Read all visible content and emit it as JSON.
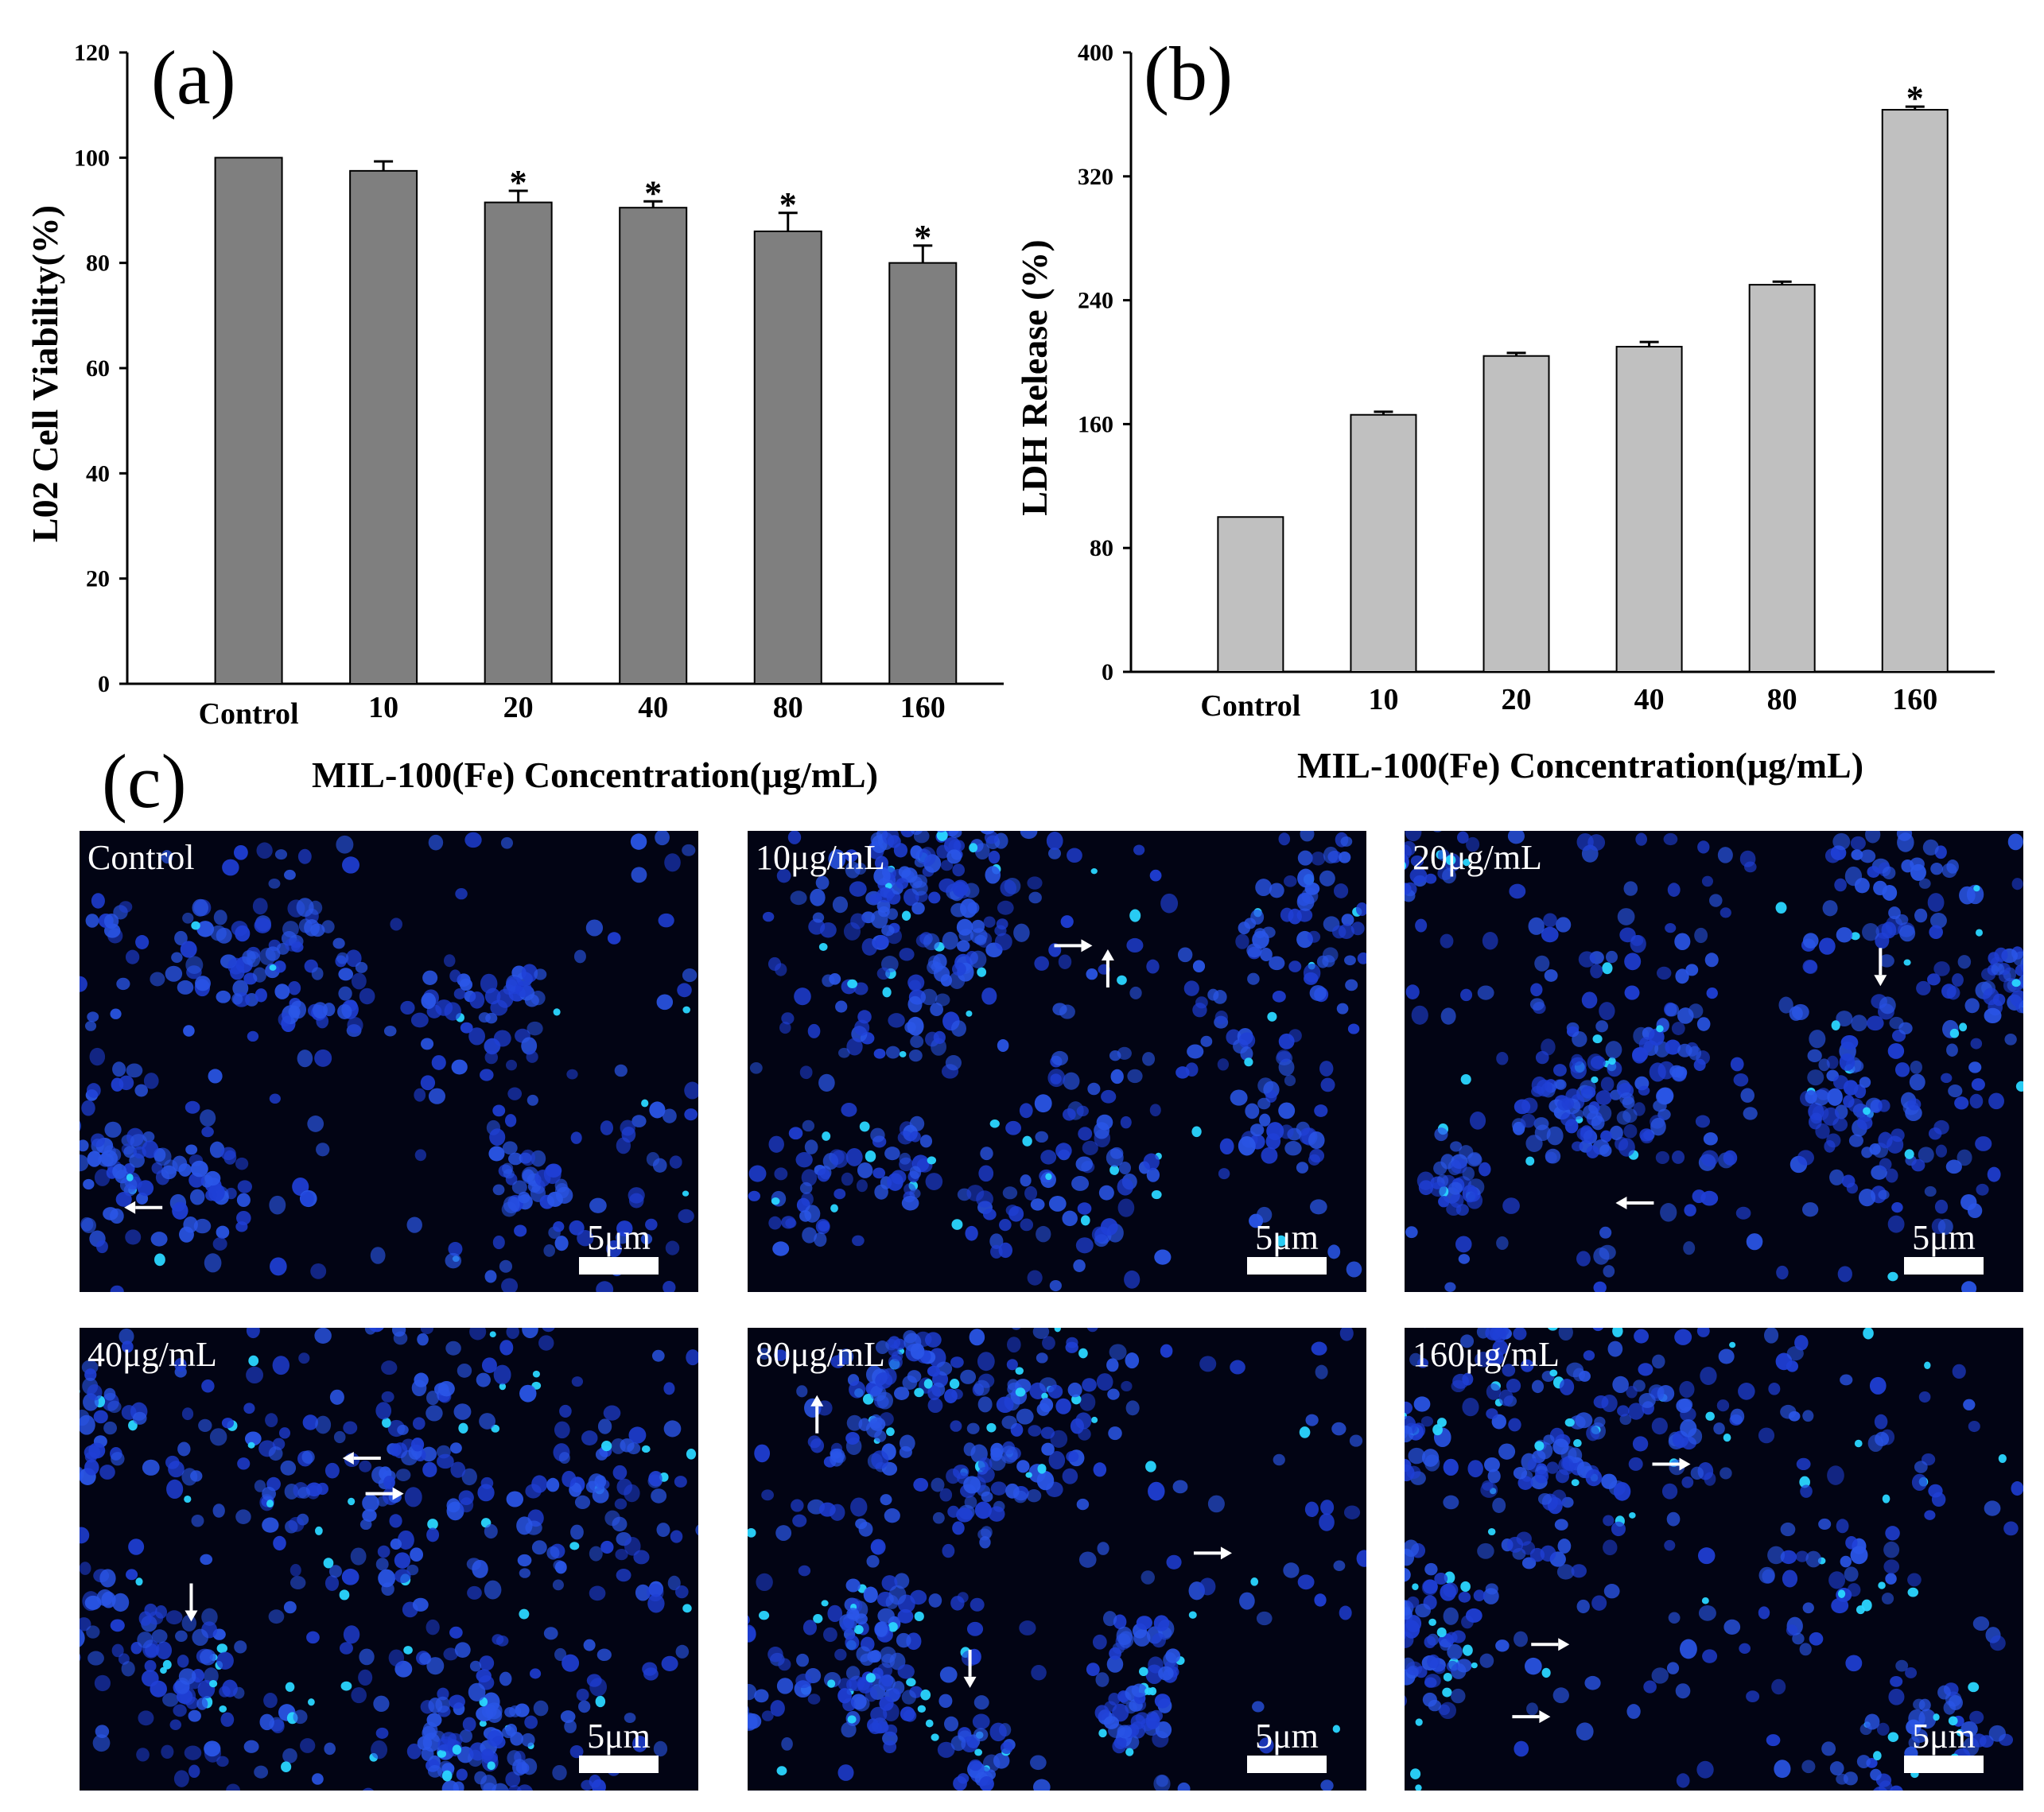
{
  "figure": {
    "panel_labels": [
      "(a)",
      "(b)",
      "(c)"
    ]
  },
  "chart_data": [
    {
      "id": "a",
      "type": "bar",
      "panel_label": "(a)",
      "title": "",
      "xlabel": "MIL-100(Fe) Concentration(μg/mL)",
      "ylabel": "L02 Cell Viability(%)",
      "categories": [
        "Control",
        "10",
        "20",
        "40",
        "80",
        "160"
      ],
      "values": [
        100,
        97.5,
        91.5,
        90.5,
        86,
        80
      ],
      "errors": [
        0,
        1.8,
        2.2,
        1.2,
        3.5,
        3.3
      ],
      "significance": [
        "",
        "",
        "*",
        "*",
        "*",
        "*"
      ],
      "ylim": [
        0,
        120
      ],
      "yticks": [
        0,
        20,
        40,
        60,
        80,
        100,
        120
      ],
      "grid": false,
      "bar_color": "#7f7f7f"
    },
    {
      "id": "b",
      "type": "bar",
      "panel_label": "(b)",
      "title": "",
      "xlabel": "MIL-100(Fe) Concentration(μg/mL)",
      "ylabel": "LDH Release (%)",
      "categories": [
        "Control",
        "10",
        "20",
        "40",
        "80",
        "160"
      ],
      "values": [
        100,
        166,
        204,
        210,
        250,
        363
      ],
      "errors": [
        0,
        2,
        2,
        3,
        2,
        2
      ],
      "significance": [
        "",
        "",
        "",
        "",
        "",
        "*"
      ],
      "ylim": [
        0,
        400
      ],
      "yticks": [
        0,
        80,
        160,
        240,
        320,
        400
      ],
      "grid": false,
      "bar_color": "#c0c0c0"
    }
  ],
  "micrographs": {
    "panel_label": "(c)",
    "scale_bar": "5μm",
    "images": [
      {
        "label": "Control",
        "seed": 11,
        "density": 0.75,
        "bright_fraction": 0.04
      },
      {
        "label": "10μg/mL",
        "seed": 23,
        "density": 1.0,
        "bright_fraction": 0.08
      },
      {
        "label": "20μg/mL",
        "seed": 37,
        "density": 1.0,
        "bright_fraction": 0.09
      },
      {
        "label": "40μg/mL",
        "seed": 41,
        "density": 1.1,
        "bright_fraction": 0.12
      },
      {
        "label": "80μg/mL",
        "seed": 53,
        "density": 1.0,
        "bright_fraction": 0.13
      },
      {
        "label": "160μg/mL",
        "seed": 67,
        "density": 0.95,
        "bright_fraction": 0.16
      }
    ]
  },
  "colors": {
    "micrograph_bg": "#020414",
    "nucleus": "#1f3fd6",
    "nucleus_alt": "#2a56e8",
    "apoptotic": "#2ad6ff",
    "arrow": "#ffffff"
  }
}
